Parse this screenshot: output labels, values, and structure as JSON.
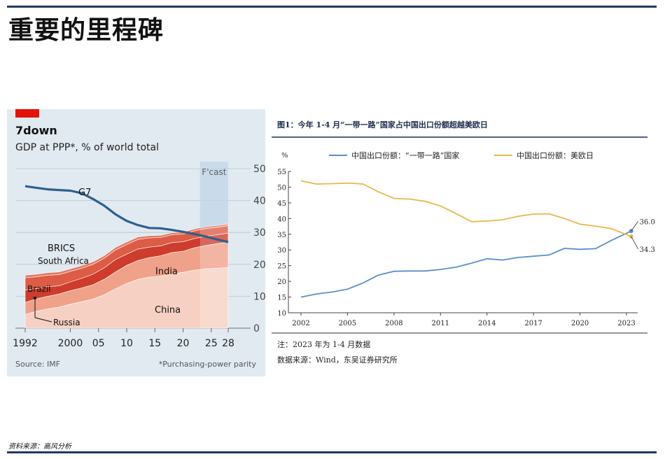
{
  "page": {
    "title": "重要的里程碑",
    "footer": "资料来源：高风分析"
  },
  "colors": {
    "econ_background": "#e1eaf1",
    "econ_red_tag": "#e3120b",
    "g7_line": "#2e5f8f",
    "forecast_band": "#a9c6de",
    "china": "#f6d0c2",
    "india": "#f0a189",
    "south_africa": "#e27a64",
    "brazil": "#dc5c45",
    "russia": "#cd3c2c",
    "belt_road_line": "#5b8fc9",
    "us_eu_jp_line": "#e7b84a",
    "navy_rule": "#1f3a5f"
  },
  "chart_data": [
    {
      "type": "area",
      "stacked": true,
      "title": "7down",
      "subtitle": "GDP at PPP*, % of world total",
      "forecast_label": "F'cast",
      "forecast_range": [
        2023,
        2028
      ],
      "x": [
        1992,
        1994,
        1996,
        1998,
        2000,
        2002,
        2004,
        2006,
        2008,
        2010,
        2012,
        2014,
        2016,
        2018,
        2020,
        2022,
        2024,
        2026,
        2028
      ],
      "x_ticks": [
        "1992",
        "2000",
        "05",
        "10",
        "15",
        "20",
        "25",
        "28"
      ],
      "x_tick_values": [
        1992,
        2000,
        2005,
        2010,
        2015,
        2020,
        2025,
        2028
      ],
      "ylim": [
        0,
        50
      ],
      "y_ticks": [
        0,
        10,
        20,
        30,
        40,
        50
      ],
      "series": [
        {
          "name": "China",
          "values": [
            4.3,
            5.3,
            6.0,
            6.6,
            7.5,
            8.3,
            9.1,
            10.5,
            12.3,
            14.0,
            15.3,
            16.0,
            16.3,
            17.0,
            17.5,
            18.2,
            18.6,
            18.8,
            19.0
          ]
        },
        {
          "name": "India",
          "values": [
            3.8,
            3.9,
            4.0,
            4.1,
            4.2,
            4.3,
            4.5,
            4.8,
            5.3,
            5.7,
            5.9,
            6.1,
            6.4,
            6.7,
            6.6,
            7.0,
            7.3,
            7.7,
            8.0
          ]
        },
        {
          "name": "Russia",
          "values": [
            3.9,
            3.2,
            3.0,
            2.6,
            2.8,
            3.0,
            3.3,
            3.6,
            3.9,
            3.5,
            3.6,
            3.3,
            3.1,
            3.1,
            3.0,
            2.9,
            2.9,
            2.8,
            2.8
          ]
        },
        {
          "name": "Brazil",
          "values": [
            3.8,
            3.7,
            3.6,
            3.5,
            3.3,
            3.2,
            3.1,
            3.0,
            3.0,
            3.0,
            3.0,
            2.9,
            2.6,
            2.5,
            2.4,
            2.4,
            2.4,
            2.3,
            2.3
          ]
        },
        {
          "name": "South Africa",
          "values": [
            0.8,
            0.8,
            0.8,
            0.8,
            0.8,
            0.8,
            0.8,
            0.8,
            0.8,
            0.8,
            0.8,
            0.7,
            0.7,
            0.6,
            0.6,
            0.6,
            0.6,
            0.6,
            0.6
          ]
        }
      ],
      "line_series": {
        "name": "G7",
        "values": [
          44.5,
          44.0,
          43.5,
          43.3,
          43.1,
          42.3,
          40.5,
          38.4,
          35.7,
          33.6,
          32.3,
          31.4,
          31.3,
          30.8,
          30.2,
          29.5,
          28.7,
          27.8,
          27.0
        ]
      },
      "annotations": [
        "G7",
        "BRICS",
        "South Africa",
        "India",
        "Brazil",
        "China",
        "Russia"
      ],
      "source": "Source: IMF",
      "footnote": "*Purchasing-power parity"
    },
    {
      "type": "line",
      "title": "图1：今年 1-4 月“一带一路”国家占中国出口份额超越美欧日",
      "ylabel": "%",
      "ylim": [
        10,
        55
      ],
      "y_ticks": [
        10,
        15,
        20,
        25,
        30,
        35,
        40,
        45,
        50,
        55
      ],
      "x_ticks": [
        "2002",
        "2005",
        "2008",
        "2011",
        "2014",
        "2017",
        "2020",
        "2023"
      ],
      "x_tick_values": [
        2002,
        2005,
        2008,
        2011,
        2014,
        2017,
        2020,
        2023
      ],
      "x": [
        2002,
        2003,
        2004,
        2005,
        2006,
        2007,
        2008,
        2009,
        2010,
        2011,
        2012,
        2013,
        2014,
        2015,
        2016,
        2017,
        2018,
        2019,
        2020,
        2021,
        2022,
        2023.3
      ],
      "series": [
        {
          "name": "中国出口份额：“一带一路”国家",
          "values": [
            15.0,
            16.0,
            16.6,
            17.5,
            19.5,
            22.0,
            23.2,
            23.3,
            23.3,
            23.8,
            24.5,
            25.8,
            27.2,
            26.8,
            27.6,
            28.0,
            28.4,
            30.5,
            30.2,
            30.4,
            33.0,
            36.0
          ]
        },
        {
          "name": "中国出口份额：美欧日",
          "values": [
            52.0,
            51.0,
            51.1,
            51.3,
            51.0,
            48.5,
            46.4,
            46.2,
            45.5,
            44.0,
            41.6,
            39.0,
            39.2,
            39.6,
            40.7,
            41.4,
            41.5,
            40.0,
            38.2,
            37.6,
            36.8,
            34.3
          ]
        }
      ],
      "end_labels": [
        "36.0",
        "34.3"
      ],
      "notes": [
        "注：2023 年为 1-4 月数据",
        "数据来源：Wind，东吴证券研究所"
      ]
    }
  ]
}
